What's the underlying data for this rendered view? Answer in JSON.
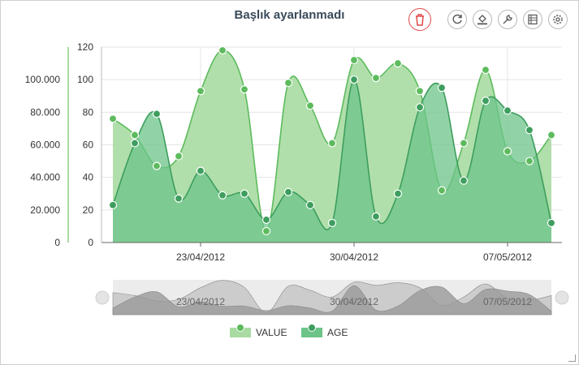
{
  "toolbar": {
    "title": "Başlık ayarlanmadı",
    "buttons": [
      {
        "name": "delete-button",
        "icon": "trash-icon"
      },
      {
        "name": "refresh-button",
        "icon": "refresh-icon"
      },
      {
        "name": "fill-button",
        "icon": "paint-bucket-icon"
      },
      {
        "name": "wrench-button",
        "icon": "wrench-icon"
      },
      {
        "name": "table-button",
        "icon": "table-icon"
      },
      {
        "name": "settings-button",
        "icon": "gear-icon"
      }
    ]
  },
  "colors": {
    "value_line": "#5dbb5d",
    "value_fill": "#a9dba2",
    "age_line": "#3e9e5e",
    "age_fill": "#6cc489",
    "delete_red": "#e04a4a",
    "axis_text": "#333333"
  },
  "chart_data": {
    "type": "area",
    "title": "Başlık ayarlanmadı",
    "x": [
      "2012-04-19",
      "2012-04-20",
      "2012-04-21",
      "2012-04-22",
      "2012-04-23",
      "2012-04-24",
      "2012-04-25",
      "2012-04-26",
      "2012-04-27",
      "2012-04-28",
      "2012-04-29",
      "2012-04-30",
      "2012-05-01",
      "2012-05-02",
      "2012-05-03",
      "2012-05-04",
      "2012-05-05",
      "2012-05-06",
      "2012-05-07",
      "2012-05-08",
      "2012-05-09"
    ],
    "x_tick_labels": [
      "23/04/2012",
      "30/04/2012",
      "07/05/2012"
    ],
    "series": [
      {
        "name": "VALUE",
        "values": [
          76,
          66,
          47,
          53,
          93,
          118,
          94,
          7,
          98,
          84,
          61,
          112,
          101,
          110,
          93,
          32,
          61,
          106,
          56,
          50,
          66
        ]
      },
      {
        "name": "AGE",
        "values": [
          23,
          61,
          79,
          27,
          44,
          29,
          30,
          14,
          31,
          23,
          12,
          100,
          16,
          30,
          83,
          95,
          38,
          87,
          81,
          69,
          12
        ]
      }
    ],
    "y_left": {
      "ticks": [
        "0",
        "20.000",
        "40.000",
        "60.000",
        "80.000",
        "100.000"
      ]
    },
    "y_right": {
      "ticks": [
        "0",
        "20",
        "40",
        "60",
        "80",
        "100",
        "120"
      ],
      "range": [
        0,
        120
      ]
    },
    "grid": true,
    "legend": "bottom-center"
  }
}
